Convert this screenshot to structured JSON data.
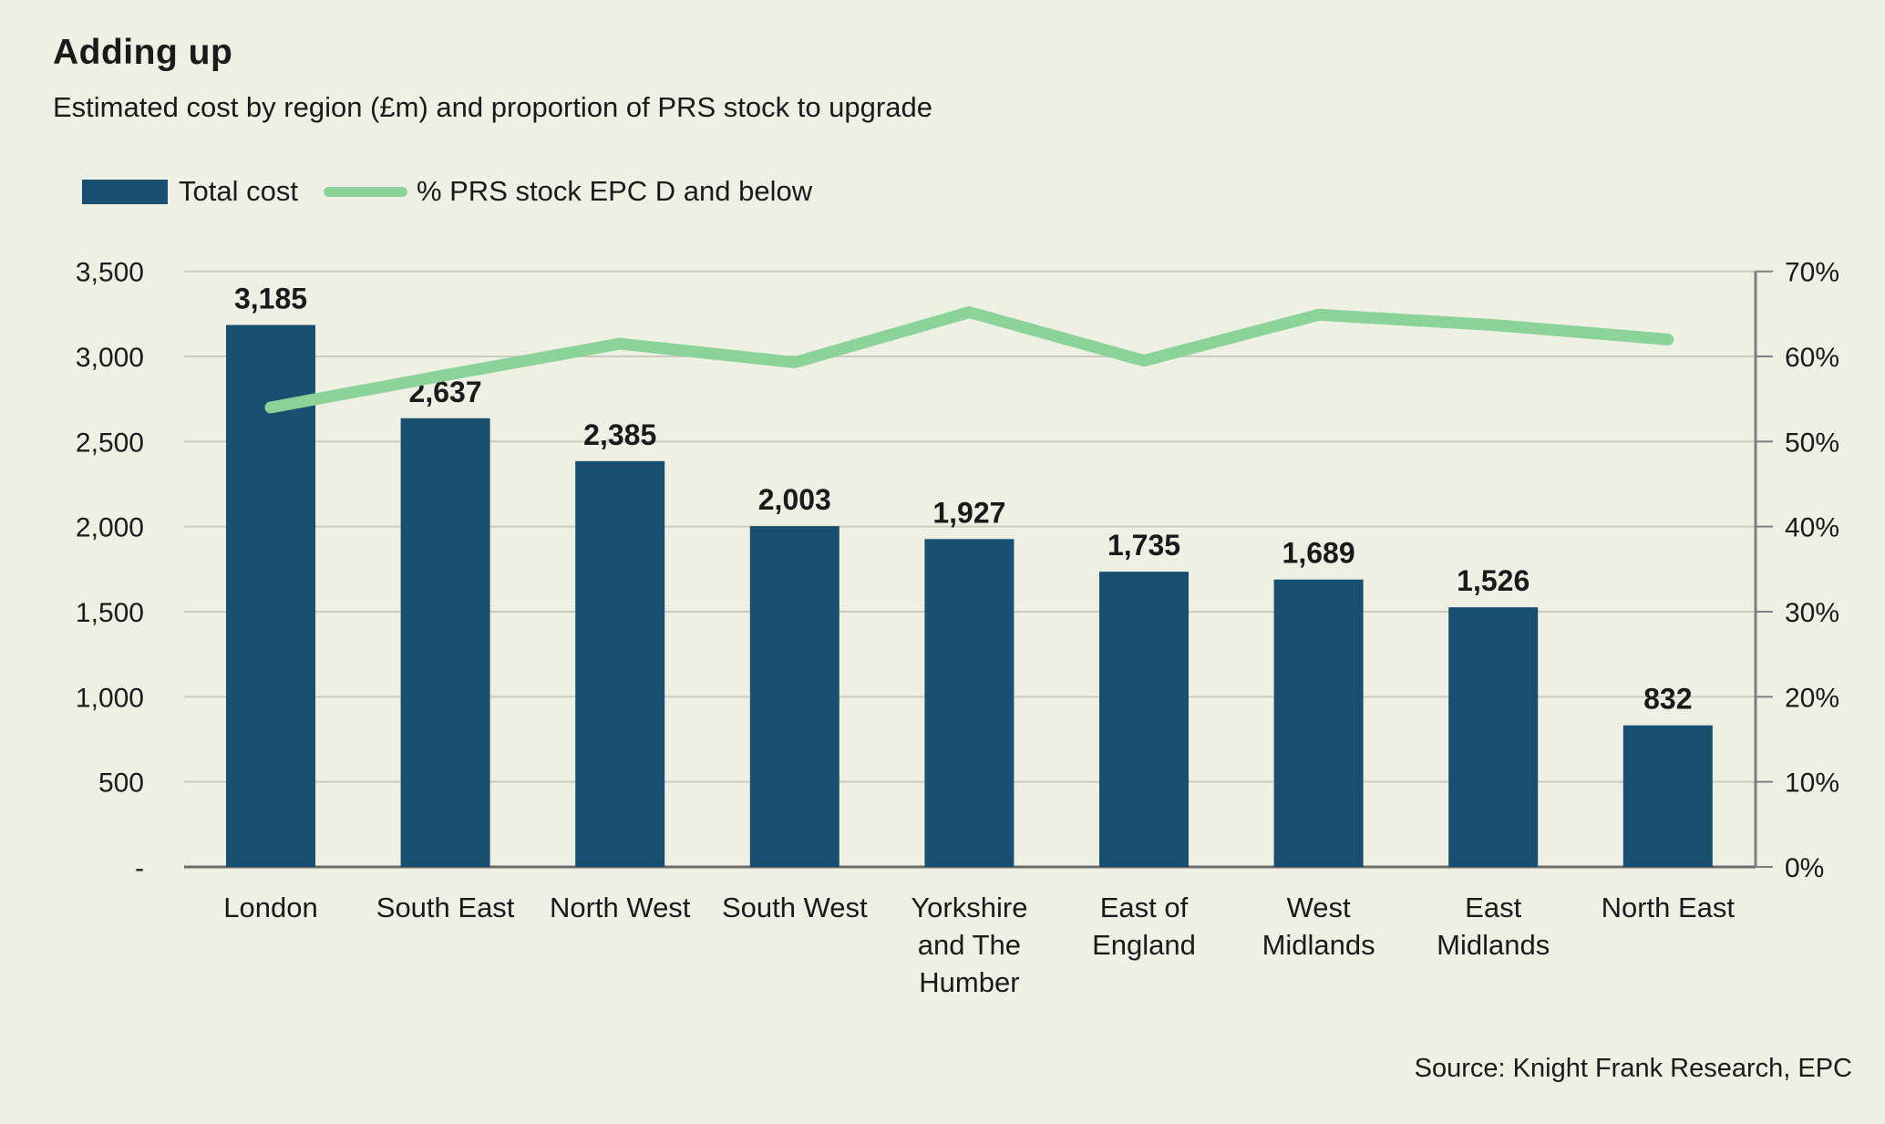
{
  "header": {
    "title": "Adding up",
    "subtitle": "Estimated cost by region (£m) and proportion of PRS stock to upgrade"
  },
  "legend": {
    "items": [
      {
        "label": "Total cost",
        "swatch": "bar-swatch"
      },
      {
        "label": "% PRS stock EPC D and below",
        "swatch": "line-swatch"
      }
    ]
  },
  "footer": {
    "source": "Source: Knight Frank Research, EPC"
  },
  "colors": {
    "background": "#EEF0E4",
    "bar": "#184F70",
    "line": "#8BD398",
    "grid": "#C9CBC1",
    "zero_line": "#6B6B6B",
    "axis": "#7F7F7F",
    "text": "#1A1A1A"
  },
  "chart_data": {
    "type": "bar",
    "subtype": "bar+line combo, dual axis",
    "title": "Adding up",
    "subtitle": "Estimated cost by region (£m) and proportion of PRS stock to upgrade",
    "legend_position": "top-left",
    "grid": true,
    "categories": [
      "London",
      "South East",
      "North West",
      "South West",
      "Yorkshire and The Humber",
      "East of England",
      "West Midlands",
      "East Midlands",
      "North East"
    ],
    "category_lines": [
      [
        "London"
      ],
      [
        "South East"
      ],
      [
        "North West"
      ],
      [
        "South West"
      ],
      [
        "Yorkshire",
        "and The",
        "Humber"
      ],
      [
        "East of",
        "England"
      ],
      [
        "West",
        "Midlands"
      ],
      [
        "East",
        "Midlands"
      ],
      [
        "North East"
      ]
    ],
    "series": [
      {
        "name": "Total cost",
        "type": "bar",
        "axis": "left",
        "unit": "£m",
        "values": [
          3185,
          2637,
          2385,
          2003,
          1927,
          1735,
          1689,
          1526,
          832
        ],
        "value_labels": [
          "3,185",
          "2,637",
          "2,385",
          "2,003",
          "1,927",
          "1,735",
          "1,689",
          "1,526",
          "832"
        ]
      },
      {
        "name": "% PRS stock EPC D and below",
        "type": "line",
        "axis": "right",
        "unit": "%",
        "values": [
          54,
          57.8,
          61.5,
          59.3,
          65.2,
          59.5,
          64.9,
          63.7,
          62
        ]
      }
    ],
    "left_axis": {
      "ticks": [
        "3,500",
        "3,000",
        "2,500",
        "2,000",
        "1,500",
        "1,000",
        "500",
        "-"
      ],
      "tick_values": [
        3500,
        3000,
        2500,
        2000,
        1500,
        1000,
        500,
        0
      ],
      "min": 0,
      "max": 3500
    },
    "right_axis": {
      "ticks": [
        "70%",
        "60%",
        "50%",
        "40%",
        "30%",
        "20%",
        "10%",
        "0%"
      ],
      "tick_values": [
        70,
        60,
        50,
        40,
        30,
        20,
        10,
        0
      ],
      "min": 0,
      "max": 70
    }
  }
}
